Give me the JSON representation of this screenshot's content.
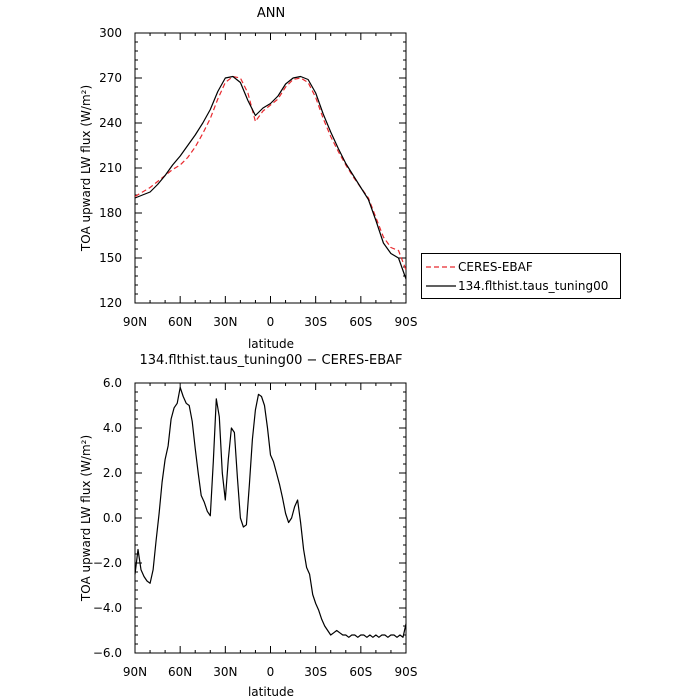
{
  "chart_data": [
    {
      "type": "line",
      "title": "ANN",
      "xlabel": "latitude",
      "ylabel": "TOA upward LW flux (W/m²)",
      "xlim": [
        90,
        -90
      ],
      "ylim": [
        120,
        300
      ],
      "xticks": [
        90,
        60,
        30,
        0,
        -30,
        -60,
        -90
      ],
      "xtick_labels": [
        "90N",
        "60N",
        "30N",
        "0",
        "30S",
        "60S",
        "90S"
      ],
      "yticks": [
        120,
        150,
        180,
        210,
        240,
        270,
        300
      ],
      "ytick_labels": [
        "120",
        "150",
        "180",
        "210",
        "240",
        "270",
        "300"
      ],
      "grid": false,
      "legend_position": "right",
      "x": [
        90,
        85,
        80,
        75,
        70,
        65,
        60,
        55,
        50,
        45,
        40,
        35,
        30,
        25,
        20,
        15,
        10,
        5,
        0,
        -5,
        -10,
        -15,
        -20,
        -25,
        -30,
        -35,
        -40,
        -45,
        -50,
        -55,
        -60,
        -65,
        -70,
        -75,
        -80,
        -85,
        -90
      ],
      "series": [
        {
          "name": "CERES-EBAF",
          "color": "#e8292e",
          "dash": "dashed",
          "values": [
            191,
            194,
            197,
            201,
            205,
            209,
            212,
            217,
            224,
            233,
            243,
            256,
            267,
            271,
            270,
            260,
            241,
            248,
            252,
            256,
            264,
            269,
            270,
            267,
            257,
            243,
            231,
            221,
            212,
            204,
            197,
            190,
            177,
            164,
            157,
            155,
            142
          ]
        },
        {
          "name": "134.flthist.taus_tuning00",
          "color": "#000000",
          "dash": "solid",
          "values": [
            190,
            192,
            194,
            199,
            205,
            212,
            218,
            225,
            232,
            240,
            249,
            261,
            270,
            271,
            267,
            255,
            245,
            250,
            253,
            258,
            266,
            270,
            271,
            269,
            260,
            246,
            234,
            223,
            213,
            205,
            197,
            189,
            175,
            160,
            153,
            150,
            136
          ]
        }
      ]
    },
    {
      "type": "line",
      "title": "134.flthist.taus_tuning00 − CERES-EBAF",
      "xlabel": "latitude",
      "ylabel": "TOA upward LW flux (W/m²)",
      "xlim": [
        90,
        -90
      ],
      "ylim": [
        -6.0,
        6.0
      ],
      "xticks": [
        90,
        60,
        30,
        0,
        -30,
        -60,
        -90
      ],
      "xtick_labels": [
        "90N",
        "60N",
        "30N",
        "0",
        "30S",
        "60S",
        "90S"
      ],
      "yticks": [
        -6.0,
        -4.0,
        -2.0,
        0.0,
        2.0,
        4.0,
        6.0
      ],
      "ytick_labels": [
        "−6.0",
        "−4.0",
        "−2.0",
        "0.0",
        "2.0",
        "4.0",
        "6.0"
      ],
      "grid": false,
      "x": [
        90,
        88,
        86,
        84,
        82,
        80,
        78,
        76,
        74,
        72,
        70,
        68,
        66,
        64,
        62,
        60,
        58,
        56,
        54,
        52,
        50,
        48,
        46,
        44,
        42,
        40,
        38,
        36,
        34,
        32,
        30,
        28,
        26,
        24,
        22,
        20,
        18,
        16,
        14,
        12,
        10,
        8,
        6,
        4,
        2,
        0,
        -2,
        -4,
        -6,
        -8,
        -10,
        -12,
        -14,
        -16,
        -18,
        -20,
        -22,
        -24,
        -26,
        -28,
        -30,
        -32,
        -34,
        -36,
        -38,
        -40,
        -42,
        -44,
        -46,
        -48,
        -50,
        -52,
        -54,
        -56,
        -58,
        -60,
        -62,
        -64,
        -66,
        -68,
        -70,
        -72,
        -74,
        -76,
        -78,
        -80,
        -82,
        -84,
        -86,
        -88,
        -90
      ],
      "series": [
        {
          "name": "134.flthist.taus_tuning00 − CERES-EBAF",
          "color": "#000000",
          "values": [
            -2.5,
            -1.4,
            -2.3,
            -2.6,
            -2.8,
            -2.9,
            -2.3,
            -1.0,
            0.2,
            1.6,
            2.6,
            3.2,
            4.4,
            4.9,
            5.1,
            5.8,
            5.4,
            5.1,
            5.0,
            4.3,
            3.1,
            2.0,
            1.0,
            0.7,
            0.3,
            0.1,
            2.5,
            5.3,
            4.5,
            2.0,
            0.8,
            2.6,
            4.0,
            3.8,
            1.8,
            0.0,
            -0.4,
            -0.3,
            1.5,
            3.5,
            4.8,
            5.5,
            5.4,
            5.0,
            4.0,
            2.8,
            2.5,
            2.0,
            1.5,
            0.9,
            0.2,
            -0.2,
            0.0,
            0.5,
            0.8,
            -0.2,
            -1.4,
            -2.2,
            -2.5,
            -3.4,
            -3.8,
            -4.1,
            -4.5,
            -4.8,
            -5.0,
            -5.2,
            -5.1,
            -5.0,
            -5.1,
            -5.2,
            -5.2,
            -5.3,
            -5.2,
            -5.2,
            -5.3,
            -5.2,
            -5.2,
            -5.3,
            -5.2,
            -5.3,
            -5.2,
            -5.3,
            -5.2,
            -5.2,
            -5.3,
            -5.2,
            -5.2,
            -5.3,
            -5.2,
            -5.3,
            -4.7
          ]
        }
      ]
    }
  ]
}
